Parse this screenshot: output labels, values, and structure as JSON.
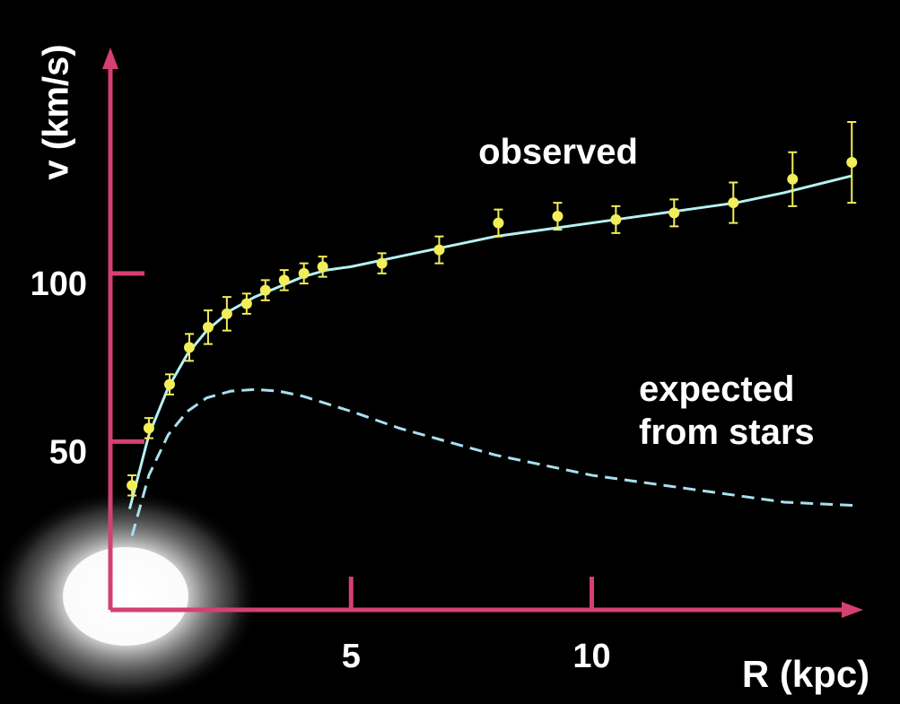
{
  "chart_data": {
    "type": "scatter",
    "x_label": "R (kpc)",
    "y_label": "v (km/s)",
    "xlim": [
      0,
      15.6
    ],
    "ylim": [
      0,
      165
    ],
    "xticks": [
      5,
      10
    ],
    "yticks": [
      50,
      100
    ],
    "axis_color": "#d6406e",
    "series": [
      {
        "name": "observed",
        "color": "#f2ee5a",
        "style": "points",
        "x": [
          0.45,
          0.8,
          1.23,
          1.64,
          2.03,
          2.42,
          2.83,
          3.22,
          3.61,
          4.02,
          4.41,
          5.64,
          6.83,
          8.06,
          9.29,
          10.5,
          11.71,
          12.94,
          14.17,
          15.4
        ],
        "values": [
          37,
          54,
          67,
          78,
          84,
          88,
          91,
          95,
          98,
          100,
          102,
          103,
          107,
          115,
          117,
          116,
          118,
          121,
          128,
          133
        ],
        "errors": [
          3,
          3,
          3,
          4,
          5,
          5,
          3,
          3,
          3,
          3,
          3,
          3,
          4,
          4,
          4,
          4,
          4,
          6,
          8,
          12
        ]
      },
      {
        "color": "#b4f2f2",
        "style": "solid",
        "x": [
          0.4,
          0.8,
          1.2,
          1.6,
          2,
          2.5,
          3,
          3.5,
          4,
          4.5,
          5,
          6,
          7,
          8,
          9,
          10,
          11,
          12,
          13,
          14,
          15.4
        ],
        "values": [
          30,
          52,
          66,
          76,
          83,
          89,
          93,
          96,
          99,
          101,
          102,
          105,
          108,
          111,
          113,
          115,
          117,
          119,
          121,
          124,
          129
        ]
      },
      {
        "name": "expected from stars",
        "color": "#a8e0f0",
        "style": "dashed",
        "x": [
          0.45,
          0.8,
          1.2,
          1.6,
          2,
          2.5,
          3,
          3.5,
          4,
          5,
          6,
          7,
          8,
          9,
          10,
          11,
          12,
          13,
          14,
          15.5
        ],
        "values": [
          22,
          40,
          52,
          59,
          63,
          65,
          65.5,
          65,
          63.5,
          59,
          54,
          50,
          46,
          43,
          40,
          38,
          36,
          34,
          32,
          31
        ]
      }
    ]
  }
}
